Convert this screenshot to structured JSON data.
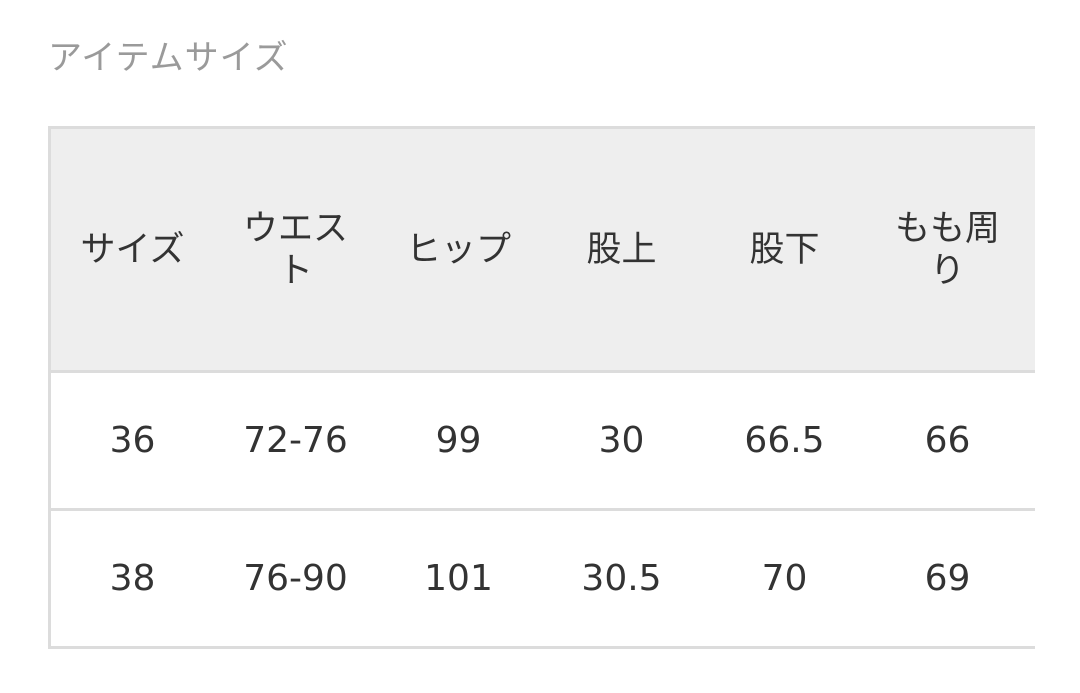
{
  "title": "アイテムサイズ",
  "table": {
    "headers": [
      "サイズ",
      "ウエスト",
      "ヒップ",
      "股上",
      "股下",
      "もも周り"
    ],
    "rows": [
      [
        "36",
        "72-76",
        "99",
        "30",
        "66.5",
        "66"
      ],
      [
        "38",
        "76-90",
        "101",
        "30.5",
        "70",
        "69"
      ]
    ]
  }
}
